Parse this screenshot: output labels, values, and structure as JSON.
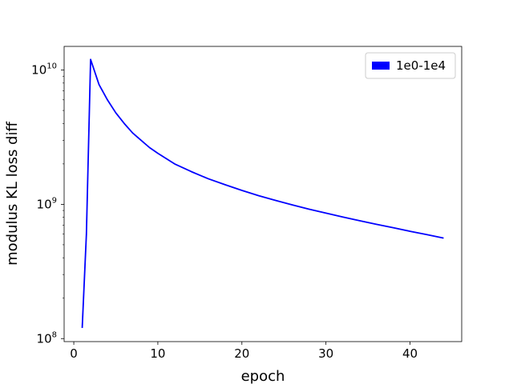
{
  "chart_data": {
    "type": "line",
    "title": "",
    "xlabel": "epoch",
    "ylabel": "modulus KL loss diff",
    "xlim": [
      -1.15,
      46.15
    ],
    "ylim": [
      95000000,
      15000000000
    ],
    "yscale": "log",
    "xticks": [
      0,
      10,
      20,
      30,
      40
    ],
    "xtick_labels": [
      "0",
      "10",
      "20",
      "30",
      "40"
    ],
    "yticks": [
      100000000,
      1000000000,
      10000000000
    ],
    "ytick_labels": [
      {
        "base": "10",
        "exp": "8"
      },
      {
        "base": "10",
        "exp": "9"
      },
      {
        "base": "10",
        "exp": "10"
      }
    ],
    "grid": false,
    "legend_position": "top-right",
    "series": [
      {
        "name": "1e0-1e4",
        "color": "#0000ff",
        "x": [
          1,
          1.5,
          2,
          3,
          4,
          5,
          6,
          7,
          8,
          9,
          10,
          12,
          14,
          16,
          18,
          20,
          22,
          24,
          26,
          28,
          30,
          32,
          34,
          36,
          38,
          40,
          42,
          44
        ],
        "y": [
          120000000,
          600000000,
          12000000000,
          7800000000,
          6000000000,
          4800000000,
          4000000000,
          3400000000,
          3000000000,
          2650000000,
          2400000000,
          2000000000,
          1750000000,
          1550000000,
          1400000000,
          1270000000,
          1160000000,
          1070000000,
          990000000,
          920000000,
          860000000,
          805000000,
          755000000,
          710000000,
          670000000,
          630000000,
          595000000,
          560000000
        ]
      }
    ]
  }
}
